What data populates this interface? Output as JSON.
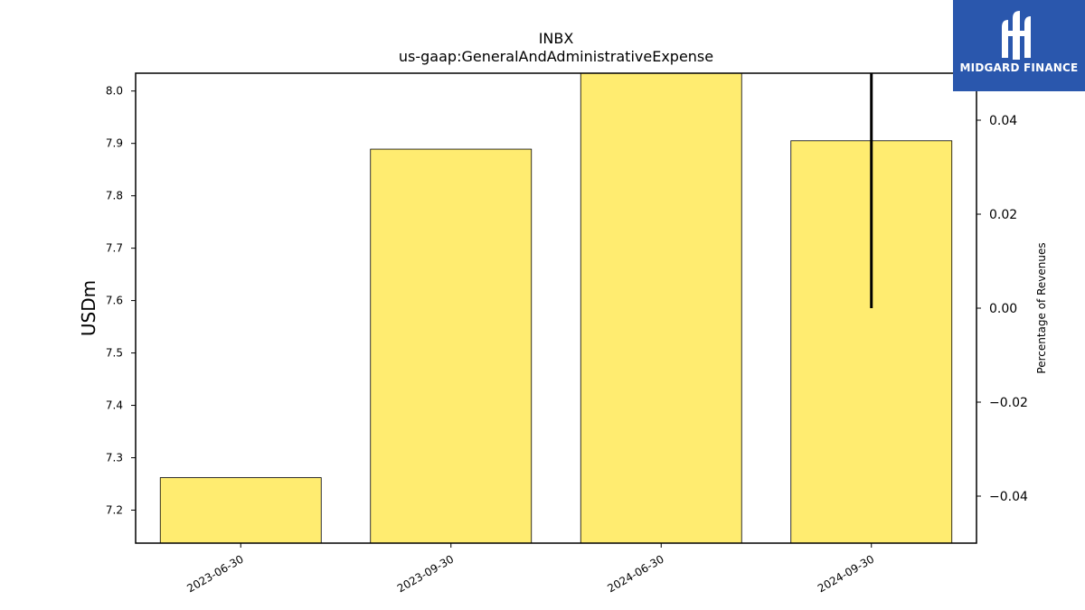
{
  "chart_data": {
    "type": "bar",
    "title": "INBX",
    "subtitle": "us-gaap:GeneralAndAdministrativeExpense",
    "ylabel": "USDm",
    "y2label": "Percentage of Revenues",
    "categories": [
      "2023-06-30",
      "2023-09-30",
      "2024-06-30",
      "2024-09-30"
    ],
    "series": [
      {
        "values": [
          7.262,
          7.889,
          8.034,
          7.905
        ]
      }
    ],
    "line_series": {
      "category": "2024-09-30",
      "from": 0.0,
      "to": 0.05
    },
    "ylim": [
      7.137,
      8.034
    ],
    "y2lim": [
      -0.05,
      0.05
    ],
    "yticks": [
      "7.2",
      "7.3",
      "7.4",
      "7.5",
      "7.6",
      "7.7",
      "7.8",
      "7.9",
      "8.0"
    ],
    "y2ticks": [
      "−0.04",
      "−0.02",
      "0.00",
      "0.02",
      "0.04"
    ],
    "bar_color": "#ffec70",
    "grid": false
  },
  "logo": {
    "text": "MIDGARD FINANCE",
    "color": "#2a57ad"
  }
}
